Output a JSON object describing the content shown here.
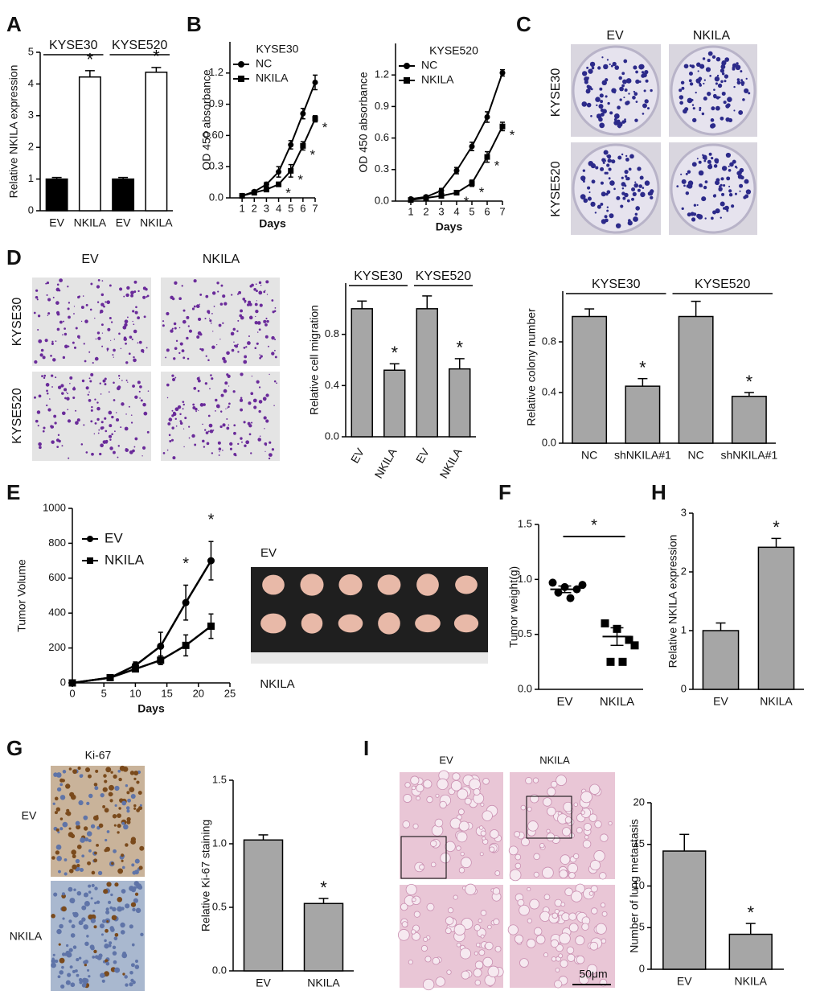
{
  "panels": [
    "A",
    "B",
    "C",
    "D",
    "E",
    "F",
    "H",
    "G",
    "I"
  ],
  "images": {
    "C": {
      "columns": [
        "EV",
        "NKILA"
      ],
      "rows": [
        "KYSE30",
        "KYSE520"
      ]
    },
    "D": {
      "columns": [
        "EV",
        "NKILA"
      ],
      "rows": [
        "KYSE30",
        "KYSE520"
      ]
    },
    "E": {
      "rows": [
        "EV",
        "NKILA"
      ]
    },
    "G": {
      "title": "Ki-67",
      "rows": [
        "EV",
        "NKILA"
      ]
    },
    "I": {
      "columns": [
        "EV",
        "NKILA"
      ],
      "scale_bar": "50μm"
    }
  },
  "chart_data": [
    {
      "type": "bar",
      "ylabel": "Relative NKILA expression",
      "groups": [
        "KYSE30",
        "KYSE520"
      ],
      "categories": [
        "EV",
        "NKILA",
        "EV",
        "NKILA"
      ],
      "values": [
        1.0,
        4.22,
        1.0,
        4.37
      ],
      "errors": [
        0.05,
        0.2,
        0.05,
        0.15
      ],
      "colors": [
        "#000000",
        "#ffffff",
        "#000000",
        "#ffffff"
      ],
      "value_marks": [
        null,
        "*",
        null,
        "*"
      ],
      "ylim": [
        0,
        5
      ],
      "yticks": [
        0,
        1,
        2,
        3,
        4,
        5
      ]
    },
    {
      "type": "line",
      "title": "KYSE30",
      "xlabel": "Days",
      "ylabel": "OD 450 absorbance",
      "x": [
        1,
        2,
        3,
        4,
        5,
        6,
        7
      ],
      "xlim": [
        0,
        7
      ],
      "xticks": [
        1,
        2,
        3,
        4,
        5,
        6,
        7
      ],
      "ylim": [
        0,
        1.5
      ],
      "yticks": [
        {
          "value": 0,
          "label": "0.0"
        },
        {
          "value": 0.3,
          "label": "0.3"
        },
        {
          "value": 0.6,
          "label": "0.60"
        },
        {
          "value": 0.9,
          "label": "0.9"
        },
        {
          "value": 1.2,
          "label": "1.2"
        }
      ],
      "series": [
        {
          "name": "NC",
          "color": "#000000",
          "marker": "circle",
          "values": [
            0.02,
            0.06,
            0.13,
            0.25,
            0.51,
            0.81,
            1.11
          ],
          "errors": [
            0,
            0.01,
            0.02,
            0.05,
            0.04,
            0.05,
            0.07
          ]
        },
        {
          "name": "NKILA",
          "color": "#000000",
          "marker": "square",
          "values": [
            0.02,
            0.05,
            0.08,
            0.13,
            0.26,
            0.5,
            0.76
          ],
          "errors": [
            0,
            0.01,
            0.01,
            0.02,
            0.06,
            0.04,
            0.03
          ],
          "value_marks": [
            null,
            null,
            null,
            "*",
            "*",
            "*",
            "*"
          ]
        }
      ]
    },
    {
      "type": "line",
      "title": "KYSE520",
      "xlabel": "Days",
      "ylabel": "OD 450 absorbance",
      "x": [
        1,
        2,
        3,
        4,
        5,
        6,
        7
      ],
      "xlim": [
        0,
        7
      ],
      "xticks": [
        1,
        2,
        3,
        4,
        5,
        6,
        7
      ],
      "ylim": [
        0,
        1.5
      ],
      "yticks": [
        {
          "value": 0,
          "label": "0.0"
        },
        {
          "value": 0.3,
          "label": "0.3"
        },
        {
          "value": 0.6,
          "label": "0.6"
        },
        {
          "value": 0.9,
          "label": "0.9"
        },
        {
          "value": 1.2,
          "label": "1.2"
        }
      ],
      "series": [
        {
          "name": "NC",
          "color": "#000000",
          "marker": "circle",
          "values": [
            0.02,
            0.04,
            0.1,
            0.29,
            0.52,
            0.8,
            1.22
          ],
          "errors": [
            0,
            0.01,
            0.02,
            0.03,
            0.04,
            0.05,
            0.03
          ]
        },
        {
          "name": "NKILA",
          "color": "#000000",
          "marker": "square",
          "values": [
            0.01,
            0.03,
            0.05,
            0.08,
            0.17,
            0.42,
            0.71
          ],
          "errors": [
            0,
            0.01,
            0.01,
            0.02,
            0.03,
            0.05,
            0.04
          ],
          "value_marks": [
            null,
            null,
            null,
            "*",
            "*",
            "*",
            "*"
          ]
        }
      ]
    },
    {
      "type": "bar",
      "ylabel": "Relative cell migration",
      "groups": [
        "KYSE30",
        "KYSE520"
      ],
      "xtick_rotation": 60,
      "categories": [
        "EV",
        "NKILA",
        "EV",
        "NKILA"
      ],
      "values": [
        1.0,
        0.52,
        1.0,
        0.53
      ],
      "errors": [
        0.06,
        0.05,
        0.1,
        0.08
      ],
      "colors": [
        "#a6a6a6",
        "#a6a6a6",
        "#a6a6a6",
        "#a6a6a6"
      ],
      "value_marks": [
        null,
        "*",
        null,
        "*"
      ],
      "ylim": [
        0,
        1.2
      ],
      "yticks": [
        {
          "value": 0,
          "label": "0.0"
        },
        {
          "value": 0.4,
          "label": "0.4"
        },
        {
          "value": 0.8,
          "label": "0.8"
        }
      ]
    },
    {
      "type": "bar",
      "ylabel": "Relative colony number",
      "groups": [
        "KYSE30",
        "KYSE520"
      ],
      "categories": [
        "NC",
        "shNKILA#1",
        "NC",
        "shNKILA#1"
      ],
      "values": [
        1.0,
        0.45,
        1.0,
        0.37
      ],
      "errors": [
        0.06,
        0.06,
        0.12,
        0.03
      ],
      "colors": [
        "#a6a6a6",
        "#a6a6a6",
        "#a6a6a6",
        "#a6a6a6"
      ],
      "value_marks": [
        null,
        "*",
        null,
        "*"
      ],
      "ylim": [
        0,
        1.2
      ],
      "yticks": [
        {
          "value": 0,
          "label": "0.0"
        },
        {
          "value": 0.4,
          "label": "0.4"
        },
        {
          "value": 0.8,
          "label": "0.8"
        }
      ]
    },
    {
      "type": "line",
      "xlabel": "Days",
      "ylabel": "Tumor Volume",
      "x": [
        0,
        6,
        10,
        14,
        18,
        22
      ],
      "xlim": [
        0,
        25
      ],
      "xticks": [
        0,
        5,
        10,
        15,
        20,
        25
      ],
      "ylim": [
        0,
        1000
      ],
      "yticks": [
        0,
        200,
        400,
        600,
        800,
        1000
      ],
      "series": [
        {
          "name": "EV",
          "color": "#000000",
          "marker": "circle",
          "values": [
            0,
            30,
            100,
            210,
            460,
            700
          ],
          "errors": [
            0,
            10,
            20,
            80,
            100,
            110
          ],
          "value_marks": [
            null,
            null,
            null,
            null,
            "*",
            "*"
          ]
        },
        {
          "name": "NKILA",
          "color": "#000000",
          "marker": "square",
          "values": [
            0,
            30,
            80,
            130,
            215,
            325
          ],
          "errors": [
            0,
            10,
            15,
            25,
            60,
            70
          ]
        }
      ]
    },
    {
      "type": "dot",
      "ylabel": "Tumor weight(g)",
      "significance": "*",
      "categories": [
        "EV",
        "NKILA"
      ],
      "markers": [
        "circle",
        "square"
      ],
      "points": [
        [
          0.97,
          0.93,
          0.91,
          0.88,
          0.83,
          0.95
        ],
        [
          0.6,
          0.55,
          0.45,
          0.25,
          0.25,
          0.4
        ]
      ],
      "means": [
        0.91,
        0.48
      ],
      "errors": [
        0.03,
        0.08
      ],
      "ylim": [
        0,
        1.5
      ],
      "yticks": [
        {
          "value": 0,
          "label": "0.0"
        },
        {
          "value": 0.5,
          "label": "0.5"
        },
        {
          "value": 1,
          "label": "1.0"
        },
        {
          "value": 1.5,
          "label": "1.5"
        }
      ]
    },
    {
      "type": "bar",
      "ylabel": "Relative NKILA expression",
      "categories": [
        "EV",
        "NKILA"
      ],
      "values": [
        1.0,
        2.42
      ],
      "errors": [
        0.13,
        0.15
      ],
      "colors": [
        "#a6a6a6",
        "#a6a6a6"
      ],
      "value_marks": [
        null,
        "*"
      ],
      "ylim": [
        0,
        3
      ],
      "yticks": [
        0,
        1,
        2,
        3
      ]
    },
    {
      "type": "bar",
      "ylabel": "Relative Ki-67 staining",
      "categories": [
        "EV",
        "NKILA"
      ],
      "values": [
        1.03,
        0.53
      ],
      "errors": [
        0.04,
        0.04
      ],
      "colors": [
        "#a6a6a6",
        "#a6a6a6"
      ],
      "value_marks": [
        null,
        "*"
      ],
      "ylim": [
        0,
        1.5
      ],
      "yticks": [
        {
          "value": 0,
          "label": "0.0"
        },
        {
          "value": 0.5,
          "label": "0.5"
        },
        {
          "value": 1,
          "label": "1.0"
        },
        {
          "value": 1.5,
          "label": "1.5"
        }
      ]
    },
    {
      "type": "bar",
      "ylabel": "Number of lung metastasis",
      "categories": [
        "EV",
        "NKILA"
      ],
      "values": [
        14.2,
        4.2
      ],
      "errors": [
        2.0,
        1.3
      ],
      "colors": [
        "#a6a6a6",
        "#a6a6a6"
      ],
      "value_marks": [
        null,
        "*"
      ],
      "ylim": [
        0,
        20
      ],
      "yticks": [
        0,
        5,
        10,
        15,
        20
      ]
    }
  ]
}
